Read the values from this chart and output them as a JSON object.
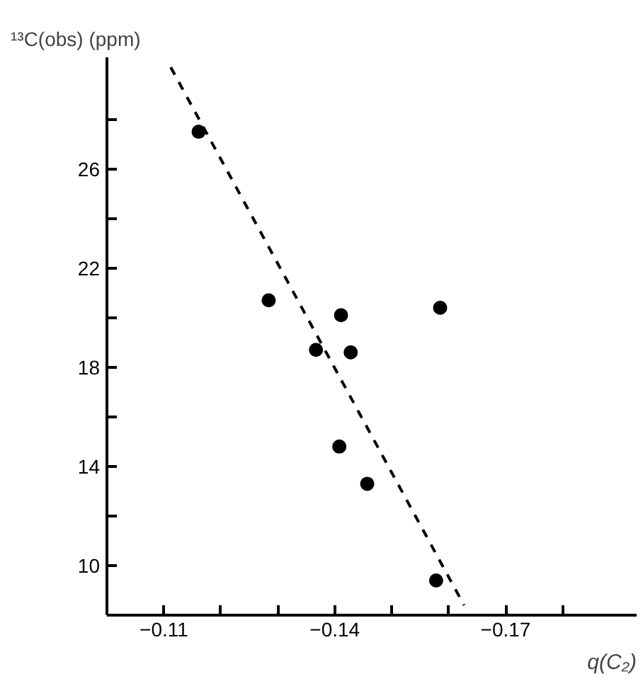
{
  "chart_data": {
    "type": "scatter",
    "xlabel": "q(C₂)",
    "ylabel": "¹³C(obs) (ppm)",
    "x": [
      -0.1161,
      -0.1284,
      -0.1411,
      -0.1367,
      -0.1428,
      -0.1585,
      -0.1408,
      -0.1457,
      -0.1578
    ],
    "values": [
      27.5,
      20.7,
      20.1,
      18.7,
      18.6,
      20.4,
      14.8,
      13.3,
      9.4
    ],
    "color": "#000000",
    "marker": "circle",
    "series": [
      {
        "type": "line",
        "marker": "none",
        "line_style": "dashed",
        "color": "#000000",
        "x": [
          -0.1112,
          -0.1627
        ],
        "values": [
          30.1,
          8.4
        ]
      }
    ],
    "xlim": [
      -0.1,
      -0.193
    ],
    "ylim": [
      8,
      30.5
    ],
    "xticks": [
      {
        "value": -0.11,
        "label": "−0.11"
      },
      {
        "value": -0.12,
        "label": null
      },
      {
        "value": -0.13,
        "label": null
      },
      {
        "value": -0.14,
        "label": "−0.14"
      },
      {
        "value": -0.15,
        "label": null
      },
      {
        "value": -0.16,
        "label": null
      },
      {
        "value": -0.17,
        "label": "−0.17"
      },
      {
        "value": -0.18,
        "label": null
      }
    ],
    "yticks": [
      10,
      {
        "value": 12,
        "label": null
      },
      14,
      {
        "value": 16,
        "label": null
      },
      18,
      {
        "value": 20,
        "label": null
      },
      22,
      {
        "value": 24,
        "label": null
      },
      26,
      {
        "value": 28,
        "label": null
      }
    ],
    "grid": false
  }
}
